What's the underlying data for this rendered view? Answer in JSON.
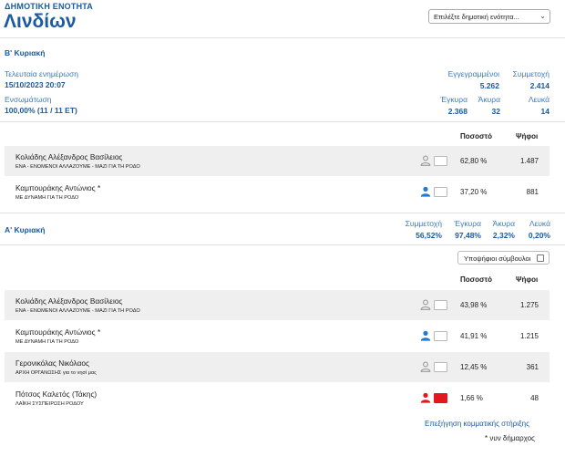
{
  "header": {
    "unit_label": "ΔΗΜΟΤΙΚΗ ΕΝΟΤΗΤΑ",
    "title": "Λινδίων",
    "select_placeholder": "Επιλέξτε δημοτική ενότητα..."
  },
  "round2": {
    "title": "Β' Κυριακή",
    "last_update_label": "Τελευταία ενημέρωση",
    "last_update_value": "15/10/2023 20:07",
    "integration_label": "Ενσωμάτωση",
    "integration_value": "100,00% (11 / 11 ΕΤ)",
    "stats": {
      "registered_label": "Εγγεγραμμένοι",
      "registered_value": "5.262",
      "turnout_label": "Συμμετοχή",
      "turnout_value": "2.414",
      "valid_label": "Έγκυρα",
      "valid_value": "2.368",
      "invalid_label": "Άκυρα",
      "invalid_value": "32",
      "blank_label": "Λευκά",
      "blank_value": "14"
    },
    "col_percent": "Ποσοστό",
    "col_votes": "Ψήφοι",
    "candidates": [
      {
        "name": "Κολιάδης Αλέξανδρος Βασίλειος",
        "party": "ΕΝΑ - ΕΝΩΜΕΝΟΙ ΑΛΛΑΖΟΥΜΕ - ΜΑΖΙ ΓΙΑ ΤΗ ΡΟΔΟ",
        "percent": "62,80 %",
        "votes": "1.487",
        "person_color": "#9a9a9a",
        "box_color": "#ffffff"
      },
      {
        "name": "Καμπουράκης Αντώνιος *",
        "party": "ΜΕ ΔΥΝΑΜΗ ΓΙΑ ΤΗ ΡΟΔΟ",
        "percent": "37,20 %",
        "votes": "881",
        "person_color": "#1f7bd6",
        "box_color": "#ffffff"
      }
    ]
  },
  "round1": {
    "title": "Α' Κυριακή",
    "stats": {
      "turnout_label": "Συμμετοχή",
      "turnout_value": "56,52%",
      "valid_label": "Έγκυρα",
      "valid_value": "97,48%",
      "invalid_label": "Άκυρα",
      "invalid_value": "2,32%",
      "blank_label": "Λευκά",
      "blank_value": "0,20%"
    },
    "councillors_toggle_label": "Υποψήφιοι σύμβουλοι",
    "col_percent": "Ποσοστό",
    "col_votes": "Ψήφοι",
    "candidates": [
      {
        "name": "Κολιάδης Αλέξανδρος Βασίλειος",
        "party": "ΕΝΑ - ΕΝΩΜΕΝΟΙ ΑΛΛΑΖΟΥΜΕ - ΜΑΖΙ ΓΙΑ ΤΗ ΡΟΔΟ",
        "percent": "43,98 %",
        "votes": "1.275",
        "person_color": "#9a9a9a",
        "box_color": "#ffffff"
      },
      {
        "name": "Καμπουράκης Αντώνιος *",
        "party": "ΜΕ ΔΥΝΑΜΗ ΓΙΑ ΤΗ ΡΟΔΟ",
        "percent": "41,91 %",
        "votes": "1.215",
        "person_color": "#1f7bd6",
        "box_color": "#ffffff"
      },
      {
        "name": "Γερονικόλας Νικόλαος",
        "party": "ΑΡΧΗ ΟΡΓΑΝΩΣΗΣ για το νησί μας",
        "percent": "12,45 %",
        "votes": "361",
        "person_color": "#9a9a9a",
        "box_color": "#ffffff"
      },
      {
        "name": "Πότσος Καλετός (Τάκης)",
        "party": "ΛΑΪΚΗ ΣΥΣΠΕΙΡΩΣΗ ΡΟΔΟΥ",
        "percent": "1,66 %",
        "votes": "48",
        "person_color": "#e3181e",
        "box_color": "#e3181e"
      }
    ]
  },
  "footer": {
    "party_support_link": "Επεξήγηση κομματικής στήριξης",
    "incumbent_note": "* νυν δήμαρχος"
  }
}
